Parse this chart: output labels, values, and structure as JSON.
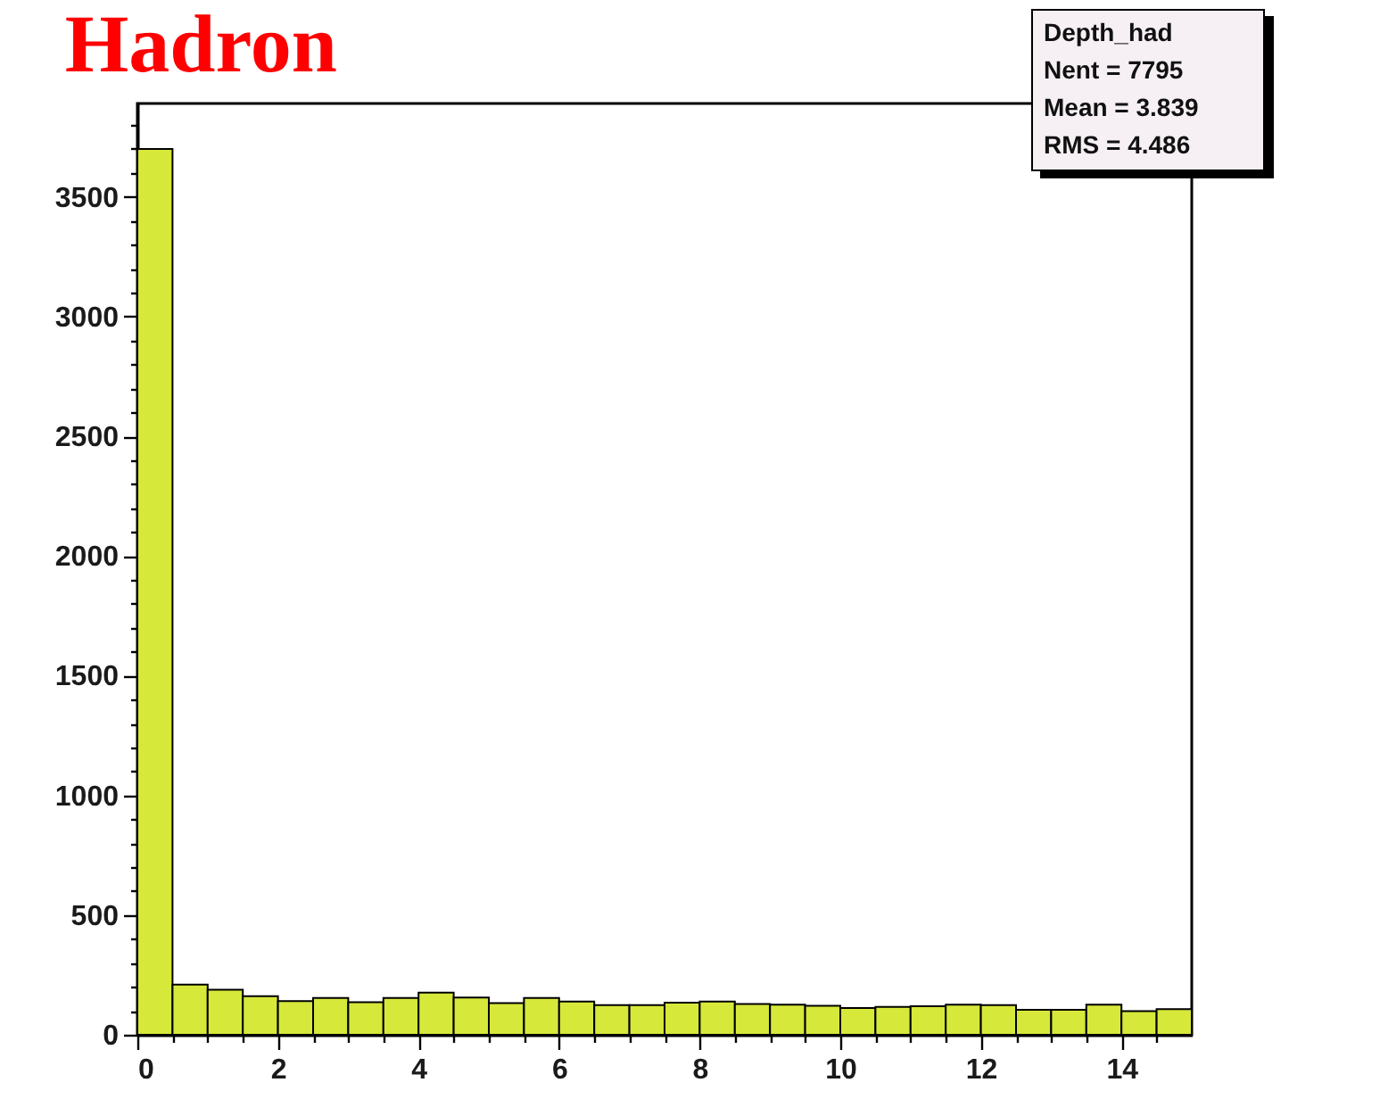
{
  "chart_data": {
    "type": "histogram",
    "title": "Hadron",
    "bins": [
      0,
      0.5,
      1,
      1.5,
      2,
      2.5,
      3,
      3.5,
      4,
      4.5,
      5,
      5.5,
      6,
      6.5,
      7,
      7.5,
      8,
      8.5,
      9,
      9.5,
      10,
      10.5,
      11,
      11.5,
      12,
      12.5,
      13,
      13.5,
      14,
      14.5,
      15
    ],
    "values": [
      3700,
      210,
      188,
      161,
      141,
      154,
      136,
      154,
      176,
      156,
      132,
      154,
      139,
      124,
      124,
      134,
      139,
      129,
      126,
      121,
      112,
      116,
      119,
      126,
      124,
      104,
      104,
      126,
      99,
      107
    ],
    "color": "#d6e83a",
    "xlim": [
      0,
      15
    ],
    "xticks": [
      0,
      {
        "value": 0.5,
        "label": null
      },
      {
        "value": 1,
        "label": null
      },
      {
        "value": 1.5,
        "label": null
      },
      2,
      {
        "value": 2.5,
        "label": null
      },
      {
        "value": 3,
        "label": null
      },
      {
        "value": 3.5,
        "label": null
      },
      4,
      {
        "value": 4.5,
        "label": null
      },
      {
        "value": 5,
        "label": null
      },
      {
        "value": 5.5,
        "label": null
      },
      6,
      {
        "value": 6.5,
        "label": null
      },
      {
        "value": 7,
        "label": null
      },
      {
        "value": 7.5,
        "label": null
      },
      8,
      {
        "value": 8.5,
        "label": null
      },
      {
        "value": 9,
        "label": null
      },
      {
        "value": 9.5,
        "label": null
      },
      10,
      {
        "value": 10.5,
        "label": null
      },
      {
        "value": 11,
        "label": null
      },
      {
        "value": 11.5,
        "label": null
      },
      12,
      {
        "value": 12.5,
        "label": null
      },
      {
        "value": 13,
        "label": null
      },
      {
        "value": 13.5,
        "label": null
      },
      14,
      {
        "value": 14.5,
        "label": null
      }
    ],
    "ylim": [
      0,
      3890
    ],
    "yticks": [
      0,
      {
        "value": 100,
        "label": null
      },
      {
        "value": 200,
        "label": null
      },
      {
        "value": 300,
        "label": null
      },
      {
        "value": 400,
        "label": null
      },
      500,
      {
        "value": 600,
        "label": null
      },
      {
        "value": 700,
        "label": null
      },
      {
        "value": 800,
        "label": null
      },
      {
        "value": 900,
        "label": null
      },
      1000,
      {
        "value": 1100,
        "label": null
      },
      {
        "value": 1200,
        "label": null
      },
      {
        "value": 1300,
        "label": null
      },
      {
        "value": 1400,
        "label": null
      },
      1500,
      {
        "value": 1600,
        "label": null
      },
      {
        "value": 1700,
        "label": null
      },
      {
        "value": 1800,
        "label": null
      },
      {
        "value": 1900,
        "label": null
      },
      2000,
      {
        "value": 2100,
        "label": null
      },
      {
        "value": 2200,
        "label": null
      },
      {
        "value": 2300,
        "label": null
      },
      {
        "value": 2400,
        "label": null
      },
      2500,
      {
        "value": 2600,
        "label": null
      },
      {
        "value": 2700,
        "label": null
      },
      {
        "value": 2800,
        "label": null
      },
      {
        "value": 2900,
        "label": null
      },
      3000,
      {
        "value": 3100,
        "label": null
      },
      {
        "value": 3200,
        "label": null
      },
      {
        "value": 3300,
        "label": null
      },
      {
        "value": 3400,
        "label": null
      },
      3500,
      {
        "value": 3600,
        "label": null
      },
      {
        "value": 3700,
        "label": null
      },
      {
        "value": 3800,
        "label": null
      }
    ],
    "annotations": [
      "Depth_had",
      "Nent = 7795",
      "Mean = 3.839",
      "RMS = 4.486"
    ]
  }
}
